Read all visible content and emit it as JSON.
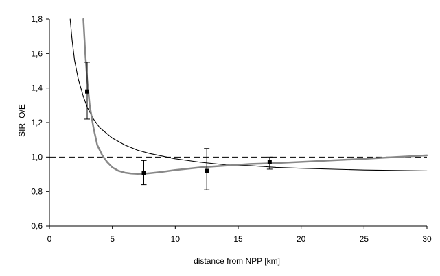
{
  "chart_data": {
    "type": "scatter",
    "title": "",
    "xlabel": "distance from NPP [km]",
    "ylabel": "SIR=O/E",
    "xlim": [
      0,
      30
    ],
    "ylim": [
      0.6,
      1.8
    ],
    "x_ticks": [
      0,
      5,
      10,
      15,
      20,
      25,
      30
    ],
    "x_tick_labels": [
      "0",
      "5",
      "10",
      "15",
      "20",
      "25",
      "30"
    ],
    "y_ticks": [
      0.6,
      0.8,
      1.0,
      1.2,
      1.4,
      1.6,
      1.8
    ],
    "y_tick_labels": [
      "0,6",
      "0,8",
      "1,0",
      "1,2",
      "1,4",
      "1,6",
      "1,8"
    ],
    "grid": false,
    "legend": "none",
    "reference_line": {
      "y": 1.0,
      "style": "dashed"
    },
    "points": [
      {
        "x": 3.0,
        "y": 1.38,
        "err_low": 1.22,
        "err_high": 1.55
      },
      {
        "x": 7.5,
        "y": 0.91,
        "err_low": 0.84,
        "err_high": 0.98
      },
      {
        "x": 12.5,
        "y": 0.92,
        "err_low": 0.81,
        "err_high": 1.05
      },
      {
        "x": 17.5,
        "y": 0.97,
        "err_low": 0.93,
        "err_high": 1.0
      }
    ],
    "series": [
      {
        "color": "#000000",
        "x": [
          1.65,
          1.8,
          2.0,
          2.3,
          2.7,
          3.0,
          3.5,
          4.0,
          5.0,
          6.0,
          7.0,
          8.0,
          9.0,
          10.0,
          12.0,
          14.0,
          16.0,
          18.0,
          20.0,
          25.0,
          30.0
        ],
        "y": [
          1.8,
          1.68,
          1.56,
          1.45,
          1.35,
          1.29,
          1.22,
          1.17,
          1.11,
          1.07,
          1.04,
          1.02,
          1.005,
          0.99,
          0.97,
          0.955,
          0.95,
          0.94,
          0.935,
          0.925,
          0.92
        ]
      },
      {
        "color": "#888888",
        "x": [
          2.7,
          2.85,
          3.0,
          3.2,
          3.5,
          3.8,
          4.2,
          4.6,
          5.0,
          5.5,
          6.0,
          6.5,
          7.0,
          7.5,
          8.0,
          9.0,
          10.0,
          12.0,
          14.0,
          16.0,
          18.0,
          20.0,
          25.0,
          30.0
        ],
        "y": [
          1.8,
          1.6,
          1.45,
          1.3,
          1.17,
          1.07,
          1.01,
          0.97,
          0.94,
          0.92,
          0.91,
          0.905,
          0.903,
          0.904,
          0.907,
          0.915,
          0.925,
          0.94,
          0.95,
          0.96,
          0.965,
          0.972,
          0.99,
          1.01
        ]
      }
    ]
  }
}
